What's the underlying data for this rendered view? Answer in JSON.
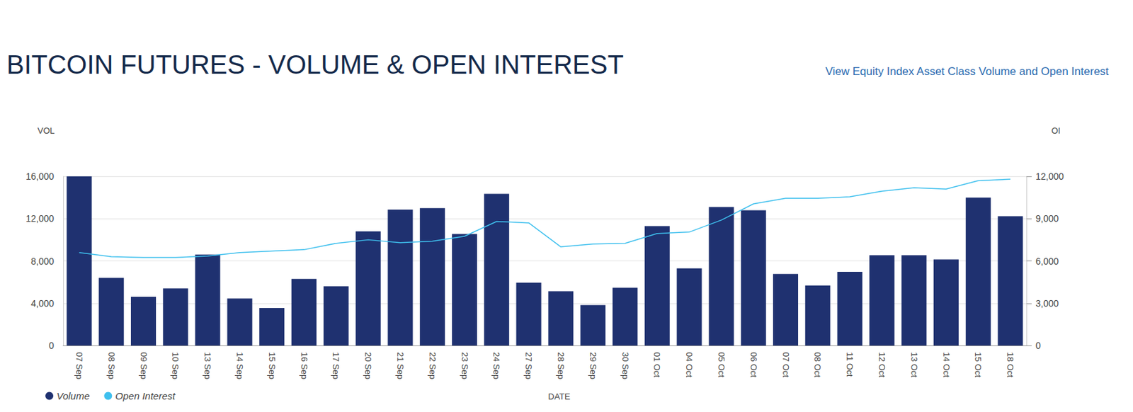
{
  "chart_data": {
    "type": "bar",
    "title": "BITCOIN FUTURES - VOLUME & OPEN INTEREST",
    "annotations": [
      "View Equity Index Asset Class Volume and Open Interest"
    ],
    "x_label": "DATE",
    "y_label": "VOL",
    "y2_label": "OI",
    "categories": [
      "07 Sep",
      "08 Sep",
      "09 Sep",
      "10 Sep",
      "13 Sep",
      "14 Sep",
      "15 Sep",
      "16 Sep",
      "17 Sep",
      "20 Sep",
      "21 Sep",
      "22 Sep",
      "23 Sep",
      "24 Sep",
      "27 Sep",
      "28 Sep",
      "29 Sep",
      "30 Sep",
      "01 Oct",
      "04 Oct",
      "05 Oct",
      "06 Oct",
      "07 Oct",
      "08 Oct",
      "11 Oct",
      "12 Oct",
      "13 Oct",
      "14 Oct",
      "15 Oct",
      "18 Oct"
    ],
    "series": [
      {
        "name": "Volume",
        "type": "bar",
        "color": "#1f3170",
        "values": [
          16000,
          6400,
          4600,
          5400,
          8600,
          4450,
          3550,
          6300,
          5600,
          10800,
          12850,
          13000,
          10550,
          14350,
          5950,
          5130,
          3830,
          5470,
          11300,
          7300,
          13100,
          12800,
          6770,
          5680,
          6970,
          8550,
          8550,
          8140,
          14000,
          12240
        ]
      },
      {
        "name": "Open Interest",
        "type": "line",
        "axis": "y2",
        "color": "#3fc0ee",
        "values": [
          6600,
          6300,
          6250,
          6250,
          6350,
          6600,
          6700,
          6800,
          7250,
          7500,
          7300,
          7400,
          7750,
          8800,
          8700,
          7000,
          7200,
          7250,
          7950,
          8050,
          8900,
          10050,
          10450,
          10450,
          10550,
          10950,
          11200,
          11100,
          11700,
          11800
        ]
      }
    ],
    "ylim": [
      0,
      16000
    ],
    "yticks": [
      0,
      {
        "value": 4000,
        "label": "4,000"
      },
      {
        "value": 8000,
        "label": "8,000"
      },
      {
        "value": 12000,
        "label": "12,000"
      },
      {
        "value": 16000,
        "label": "16,000"
      }
    ],
    "y2lim": [
      0,
      12000
    ],
    "y2ticks": [
      0,
      {
        "value": 3000,
        "label": "3,000"
      },
      {
        "value": 6000,
        "label": "6,000"
      },
      {
        "value": 9000,
        "label": "9,000"
      },
      {
        "value": 12000,
        "label": "12,000"
      }
    ],
    "grid": true,
    "legend": "bottom-left"
  }
}
